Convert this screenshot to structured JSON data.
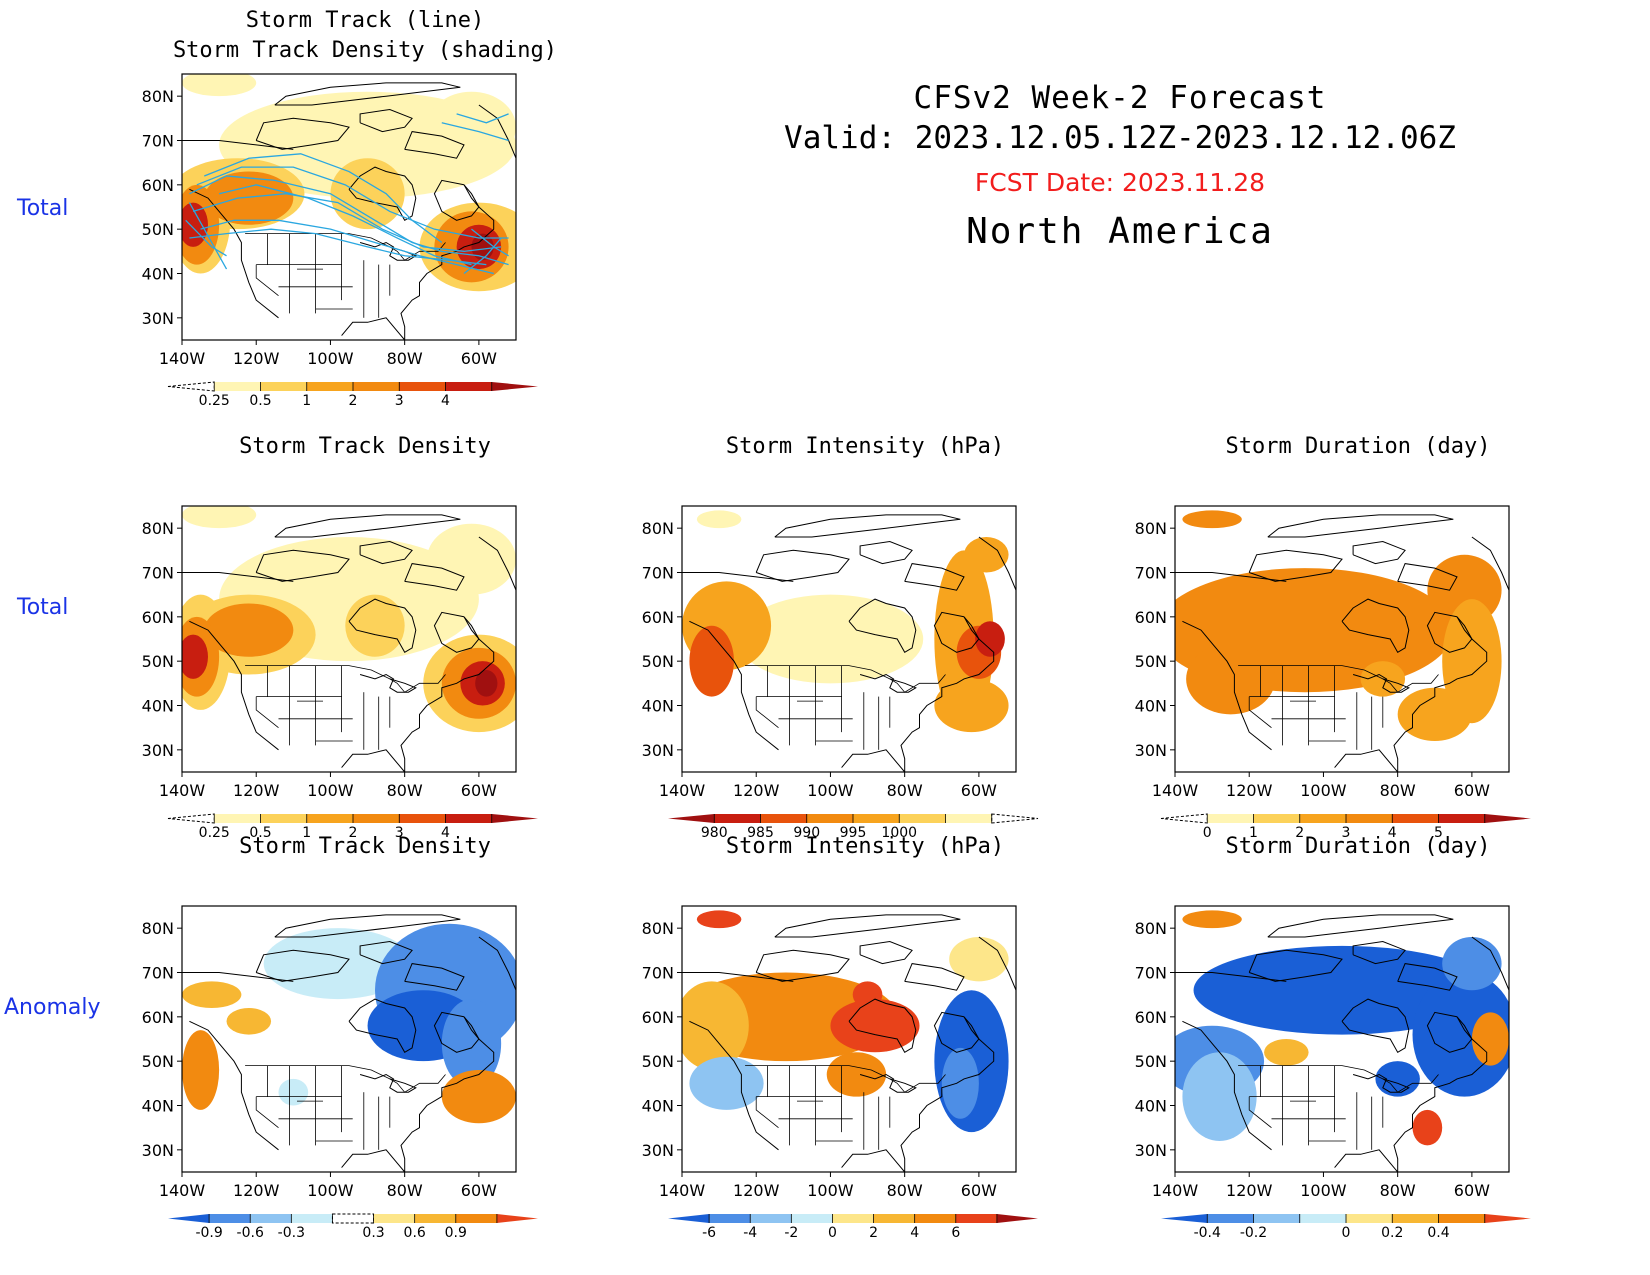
{
  "header": {
    "line1": "CFSv2 Week-2 Forecast",
    "line2": "Valid: 2023.12.05.12Z-2023.12.12.06Z",
    "fcst_date": "FCST Date: 2023.11.28",
    "region": "North America"
  },
  "row_labels": [
    "Total",
    "Total",
    "Anomaly"
  ],
  "axes": {
    "lat_labels": [
      "80N",
      "70N",
      "60N",
      "50N",
      "40N",
      "30N"
    ],
    "lon_labels": [
      "140W",
      "120W",
      "100W",
      "80W",
      "60W"
    ]
  },
  "colors": {
    "header_red": "#f21d1d",
    "row_label_blue": "#1a33e6",
    "track_line": "#2aa7e0"
  },
  "panels": [
    {
      "id": "track-total",
      "title": [
        "Storm Track (line)",
        "Storm Track Density (shading)"
      ],
      "colorbar": {
        "colors": [
          "#ffffff",
          "#fff5b4",
          "#fcd25a",
          "#f7a41e",
          "#f28a10",
          "#e8530c",
          "#c81e10",
          "#a01010"
        ],
        "labels": [
          "0.25",
          "0.5",
          "1",
          "2",
          "3",
          "4"
        ],
        "label_slots": [
          1,
          2,
          3,
          4,
          5,
          6
        ]
      }
    },
    {
      "id": "density-total",
      "title": [
        "Storm Track Density"
      ],
      "colorbar": {
        "colors": [
          "#ffffff",
          "#fff5b4",
          "#fcd25a",
          "#f7a41e",
          "#f28a10",
          "#e8530c",
          "#c81e10",
          "#a01010"
        ],
        "labels": [
          "0.25",
          "0.5",
          "1",
          "2",
          "3",
          "4"
        ],
        "label_slots": [
          1,
          2,
          3,
          4,
          5,
          6
        ]
      }
    },
    {
      "id": "intensity-total",
      "title": [
        "Storm Intensity (hPa)"
      ],
      "colorbar": {
        "colors": [
          "#a01010",
          "#c81e10",
          "#e8530c",
          "#f28a10",
          "#f7a41e",
          "#fcd25a",
          "#fff5b4",
          "#ffffff"
        ],
        "labels": [
          "980",
          "985",
          "990",
          "995",
          "1000"
        ],
        "label_slots": [
          1,
          2,
          3,
          4,
          5
        ]
      }
    },
    {
      "id": "duration-total",
      "title": [
        "Storm Duration (day)"
      ],
      "colorbar": {
        "colors": [
          "#ffffff",
          "#fff5b4",
          "#fcd25a",
          "#f7a41e",
          "#f28a10",
          "#e8530c",
          "#c81e10",
          "#a01010"
        ],
        "labels": [
          "0",
          "1",
          "2",
          "3",
          "4",
          "5"
        ],
        "label_slots": [
          1,
          2,
          3,
          4,
          5,
          6
        ]
      }
    },
    {
      "id": "density-anom",
      "title": [
        "Storm Track Density"
      ],
      "colorbar": {
        "colors": [
          "#1a5fd6",
          "#4d8ee6",
          "#8ec4f2",
          "#c8ecf7",
          "#ffffff",
          "#fde68a",
          "#f7b733",
          "#f28a10",
          "#e8421a"
        ],
        "labels": [
          "-0.9",
          "-0.6",
          "-0.3",
          "0.3",
          "0.6",
          "0.9"
        ],
        "label_slots": [
          1,
          2,
          3,
          5,
          6,
          7
        ]
      }
    },
    {
      "id": "intensity-anom",
      "title": [
        "Storm Intensity (hPa)"
      ],
      "colorbar": {
        "colors": [
          "#1a5fd6",
          "#4d8ee6",
          "#8ec4f2",
          "#c8ecf7",
          "#fde68a",
          "#f7b733",
          "#f28a10",
          "#e8421a",
          "#a01010"
        ],
        "labels": [
          "-6",
          "-4",
          "-2",
          "0",
          "2",
          "4",
          "6"
        ],
        "label_slots": [
          1,
          2,
          3,
          4,
          5,
          6,
          7
        ]
      }
    },
    {
      "id": "duration-anom",
      "title": [
        "Storm Duration (day)"
      ],
      "colorbar": {
        "colors": [
          "#1a5fd6",
          "#4d8ee6",
          "#8ec4f2",
          "#c8ecf7",
          "#fde68a",
          "#f7b733",
          "#f28a10",
          "#e8421a"
        ],
        "labels": [
          "-0.4",
          "-0.2",
          "0",
          "0.2",
          "0.4"
        ],
        "label_slots": [
          1,
          2,
          4,
          5,
          6
        ]
      }
    }
  ]
}
